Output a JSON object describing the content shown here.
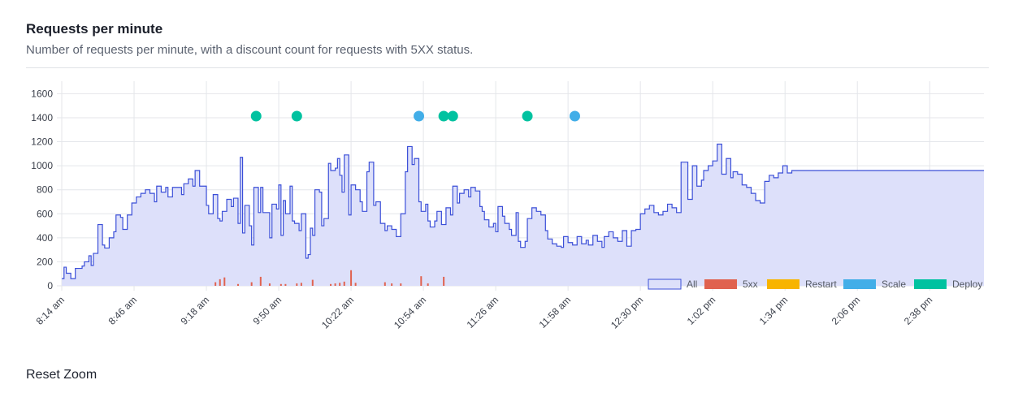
{
  "header": {
    "title": "Requests per minute",
    "subtitle": "Number of requests per minute, with a discount count for requests with 5XX status."
  },
  "footer": {
    "reset_zoom": "Reset Zoom"
  },
  "chart_data": {
    "type": "area",
    "x_axis": {
      "unit": "minutes",
      "start": "8:14 am",
      "end": "3:02 pm",
      "tick_labels": [
        "8:14 am",
        "8:46 am",
        "9:18 am",
        "9:50 am",
        "10:22 am",
        "10:54 am",
        "11:26 am",
        "11:58 am",
        "12:30 pm",
        "1:02 pm",
        "1:34 pm",
        "2:06 pm",
        "2:38 pm"
      ]
    },
    "y_axis": {
      "ylim": [
        0,
        1650
      ],
      "ticks": [
        0,
        200,
        400,
        600,
        800,
        1000,
        1200,
        1400,
        1600
      ]
    },
    "grid": true,
    "legend_position": "bottom-right",
    "legend": [
      {
        "label": "All",
        "color": "#3b4fd8",
        "fill": "#dde0fa"
      },
      {
        "label": "5xx",
        "color": "#e0624f"
      },
      {
        "label": "Restart",
        "color": "#f8b400"
      },
      {
        "label": "Scale",
        "color": "#42aee8"
      },
      {
        "label": "Deploy",
        "color": "#00c2a0"
      }
    ],
    "series": [
      {
        "name": "All",
        "step": true,
        "points": [
          [
            "8:14 am",
            60
          ],
          [
            "8:15 am",
            155
          ],
          [
            "8:16 am",
            105
          ],
          [
            "8:18 am",
            60
          ],
          [
            "8:20 am",
            145
          ],
          [
            "8:23 am",
            165
          ],
          [
            "8:24 am",
            200
          ],
          [
            "8:26 am",
            250
          ],
          [
            "8:27 am",
            170
          ],
          [
            "8:28 am",
            270
          ],
          [
            "8:30 am",
            510
          ],
          [
            "8:32 am",
            340
          ],
          [
            "8:33 am",
            315
          ],
          [
            "8:35 am",
            400
          ],
          [
            "8:37 am",
            450
          ],
          [
            "8:38 am",
            590
          ],
          [
            "8:40 am",
            570
          ],
          [
            "8:41 am",
            470
          ],
          [
            "8:43 am",
            590
          ],
          [
            "8:45 am",
            690
          ],
          [
            "8:47 am",
            740
          ],
          [
            "8:49 am",
            770
          ],
          [
            "8:51 am",
            800
          ],
          [
            "8:53 am",
            770
          ],
          [
            "8:55 am",
            700
          ],
          [
            "8:56 am",
            830
          ],
          [
            "8:58 am",
            780
          ],
          [
            "9:00 am",
            820
          ],
          [
            "9:01 am",
            740
          ],
          [
            "9:03 am",
            820
          ],
          [
            "9:05 am",
            820
          ],
          [
            "9:07 am",
            760
          ],
          [
            "9:08 am",
            850
          ],
          [
            "9:10 am",
            890
          ],
          [
            "9:12 am",
            830
          ],
          [
            "9:13 am",
            960
          ],
          [
            "9:15 am",
            830
          ],
          [
            "9:18 am",
            670
          ],
          [
            "9:19 am",
            600
          ],
          [
            "9:21 am",
            760
          ],
          [
            "9:23 am",
            560
          ],
          [
            "9:24 am",
            540
          ],
          [
            "9:25 am",
            620
          ],
          [
            "9:27 am",
            720
          ],
          [
            "9:29 am",
            660
          ],
          [
            "9:30 am",
            730
          ],
          [
            "9:32 am",
            520
          ],
          [
            "9:33 am",
            1070
          ],
          [
            "9:34 am",
            440
          ],
          [
            "9:35 am",
            670
          ],
          [
            "9:37 am",
            500
          ],
          [
            "9:38 am",
            340
          ],
          [
            "9:39 am",
            820
          ],
          [
            "9:41 am",
            610
          ],
          [
            "9:42 am",
            820
          ],
          [
            "9:43 am",
            610
          ],
          [
            "9:46 am",
            400
          ],
          [
            "9:47 am",
            680
          ],
          [
            "9:49 am",
            640
          ],
          [
            "9:50 am",
            840
          ],
          [
            "9:51 am",
            420
          ],
          [
            "9:52 am",
            710
          ],
          [
            "9:53 am",
            600
          ],
          [
            "9:55 am",
            830
          ],
          [
            "9:56 am",
            540
          ],
          [
            "9:57 am",
            520
          ],
          [
            "9:59 am",
            460
          ],
          [
            "10:00 am",
            600
          ],
          [
            "10:02 am",
            230
          ],
          [
            "10:03 am",
            260
          ],
          [
            "10:04 am",
            480
          ],
          [
            "10:05 am",
            420
          ],
          [
            "10:06 am",
            800
          ],
          [
            "10:08 am",
            780
          ],
          [
            "10:09 am",
            500
          ],
          [
            "10:10 am",
            560
          ],
          [
            "10:12 am",
            1020
          ],
          [
            "10:13 am",
            960
          ],
          [
            "10:15 am",
            980
          ],
          [
            "10:16 am",
            1060
          ],
          [
            "10:17 am",
            920
          ],
          [
            "10:18 am",
            780
          ],
          [
            "10:19 am",
            1090
          ],
          [
            "10:21 am",
            590
          ],
          [
            "10:22 am",
            840
          ],
          [
            "10:24 am",
            800
          ],
          [
            "10:26 am",
            700
          ],
          [
            "10:27 am",
            620
          ],
          [
            "10:29 am",
            950
          ],
          [
            "10:30 am",
            1030
          ],
          [
            "10:32 am",
            670
          ],
          [
            "10:33 am",
            700
          ],
          [
            "10:35 am",
            520
          ],
          [
            "10:37 am",
            460
          ],
          [
            "10:38 am",
            500
          ],
          [
            "10:40 am",
            470
          ],
          [
            "10:42 am",
            410
          ],
          [
            "10:44 am",
            600
          ],
          [
            "10:46 am",
            950
          ],
          [
            "10:47 am",
            1160
          ],
          [
            "10:49 am",
            1010
          ],
          [
            "10:50 am",
            1060
          ],
          [
            "10:52 am",
            700
          ],
          [
            "10:53 am",
            620
          ],
          [
            "10:55 am",
            680
          ],
          [
            "10:56 am",
            540
          ],
          [
            "10:57 am",
            490
          ],
          [
            "10:59 am",
            540
          ],
          [
            "11:00 am",
            620
          ],
          [
            "11:02 am",
            510
          ],
          [
            "11:04 am",
            650
          ],
          [
            "11:06 am",
            590
          ],
          [
            "11:07 am",
            830
          ],
          [
            "11:09 am",
            690
          ],
          [
            "11:10 am",
            770
          ],
          [
            "11:12 am",
            800
          ],
          [
            "11:14 am",
            740
          ],
          [
            "11:15 am",
            820
          ],
          [
            "11:17 am",
            790
          ],
          [
            "11:19 am",
            660
          ],
          [
            "11:20 am",
            620
          ],
          [
            "11:21 am",
            550
          ],
          [
            "11:23 am",
            490
          ],
          [
            "11:25 am",
            520
          ],
          [
            "11:26 am",
            450
          ],
          [
            "11:27 am",
            660
          ],
          [
            "11:29 am",
            580
          ],
          [
            "11:30 am",
            520
          ],
          [
            "11:32 am",
            470
          ],
          [
            "11:33 am",
            420
          ],
          [
            "11:35 am",
            610
          ],
          [
            "11:36 am",
            370
          ],
          [
            "11:37 am",
            320
          ],
          [
            "11:39 am",
            370
          ],
          [
            "11:40 am",
            560
          ],
          [
            "11:42 am",
            650
          ],
          [
            "11:44 am",
            620
          ],
          [
            "11:46 am",
            590
          ],
          [
            "11:48 am",
            460
          ],
          [
            "11:49 am",
            390
          ],
          [
            "11:51 am",
            350
          ],
          [
            "11:53 am",
            330
          ],
          [
            "11:55 am",
            320
          ],
          [
            "11:56 am",
            410
          ],
          [
            "11:58 am",
            360
          ],
          [
            "12:00 pm",
            340
          ],
          [
            "12:02 pm",
            410
          ],
          [
            "12:04 pm",
            350
          ],
          [
            "12:06 pm",
            380
          ],
          [
            "12:07 pm",
            340
          ],
          [
            "12:09 pm",
            420
          ],
          [
            "12:11 pm",
            370
          ],
          [
            "12:13 pm",
            320
          ],
          [
            "12:14 pm",
            410
          ],
          [
            "12:16 pm",
            450
          ],
          [
            "12:18 pm",
            400
          ],
          [
            "12:20 pm",
            370
          ],
          [
            "12:22 pm",
            460
          ],
          [
            "12:24 pm",
            330
          ],
          [
            "12:26 pm",
            460
          ],
          [
            "12:28 pm",
            470
          ],
          [
            "12:30 pm",
            600
          ],
          [
            "12:32 pm",
            640
          ],
          [
            "12:34 pm",
            670
          ],
          [
            "12:36 pm",
            610
          ],
          [
            "12:38 pm",
            590
          ],
          [
            "12:40 pm",
            620
          ],
          [
            "12:42 pm",
            680
          ],
          [
            "12:44 pm",
            650
          ],
          [
            "12:46 pm",
            610
          ],
          [
            "12:48 pm",
            1030
          ],
          [
            "12:51 pm",
            720
          ],
          [
            "12:53 pm",
            1000
          ],
          [
            "12:55 pm",
            830
          ],
          [
            "12:57 pm",
            880
          ],
          [
            "12:58 pm",
            960
          ],
          [
            "1:00 pm",
            1000
          ],
          [
            "1:02 pm",
            1040
          ],
          [
            "1:04 pm",
            1180
          ],
          [
            "1:06 pm",
            930
          ],
          [
            "1:08 pm",
            1060
          ],
          [
            "1:10 pm",
            900
          ],
          [
            "1:11 pm",
            950
          ],
          [
            "1:13 pm",
            930
          ],
          [
            "1:15 pm",
            840
          ],
          [
            "1:17 pm",
            820
          ],
          [
            "1:19 pm",
            770
          ],
          [
            "1:21 pm",
            710
          ],
          [
            "1:23 pm",
            690
          ],
          [
            "1:25 pm",
            870
          ],
          [
            "1:27 pm",
            920
          ],
          [
            "1:29 pm",
            900
          ],
          [
            "1:31 pm",
            940
          ],
          [
            "1:33 pm",
            1000
          ],
          [
            "1:35 pm",
            940
          ],
          [
            "1:37 pm",
            960
          ]
        ]
      },
      {
        "name": "5xx",
        "type": "bar",
        "points": [
          [
            "9:22 am",
            30
          ],
          [
            "9:24 am",
            55
          ],
          [
            "9:26 am",
            70
          ],
          [
            "9:32 am",
            15
          ],
          [
            "9:38 am",
            30
          ],
          [
            "9:42 am",
            75
          ],
          [
            "9:46 am",
            20
          ],
          [
            "9:51 am",
            15
          ],
          [
            "9:53 am",
            15
          ],
          [
            "9:58 am",
            20
          ],
          [
            "10:00 am",
            25
          ],
          [
            "10:05 am",
            50
          ],
          [
            "10:13 am",
            15
          ],
          [
            "10:15 am",
            20
          ],
          [
            "10:17 am",
            25
          ],
          [
            "10:19 am",
            35
          ],
          [
            "10:22 am",
            130
          ],
          [
            "10:24 am",
            25
          ],
          [
            "10:37 am",
            30
          ],
          [
            "10:40 am",
            20
          ],
          [
            "10:44 am",
            20
          ],
          [
            "10:53 am",
            80
          ],
          [
            "10:56 am",
            20
          ],
          [
            "11:03 am",
            75
          ]
        ]
      }
    ],
    "events": [
      {
        "type": "Deploy",
        "time": "9:40 am"
      },
      {
        "type": "Deploy",
        "time": "9:58 am"
      },
      {
        "type": "Scale",
        "time": "10:52 am"
      },
      {
        "type": "Deploy",
        "time": "11:03 am"
      },
      {
        "type": "Deploy",
        "time": "11:07 am"
      },
      {
        "type": "Deploy",
        "time": "11:40 am"
      },
      {
        "type": "Scale",
        "time": "12:01 pm"
      }
    ]
  }
}
